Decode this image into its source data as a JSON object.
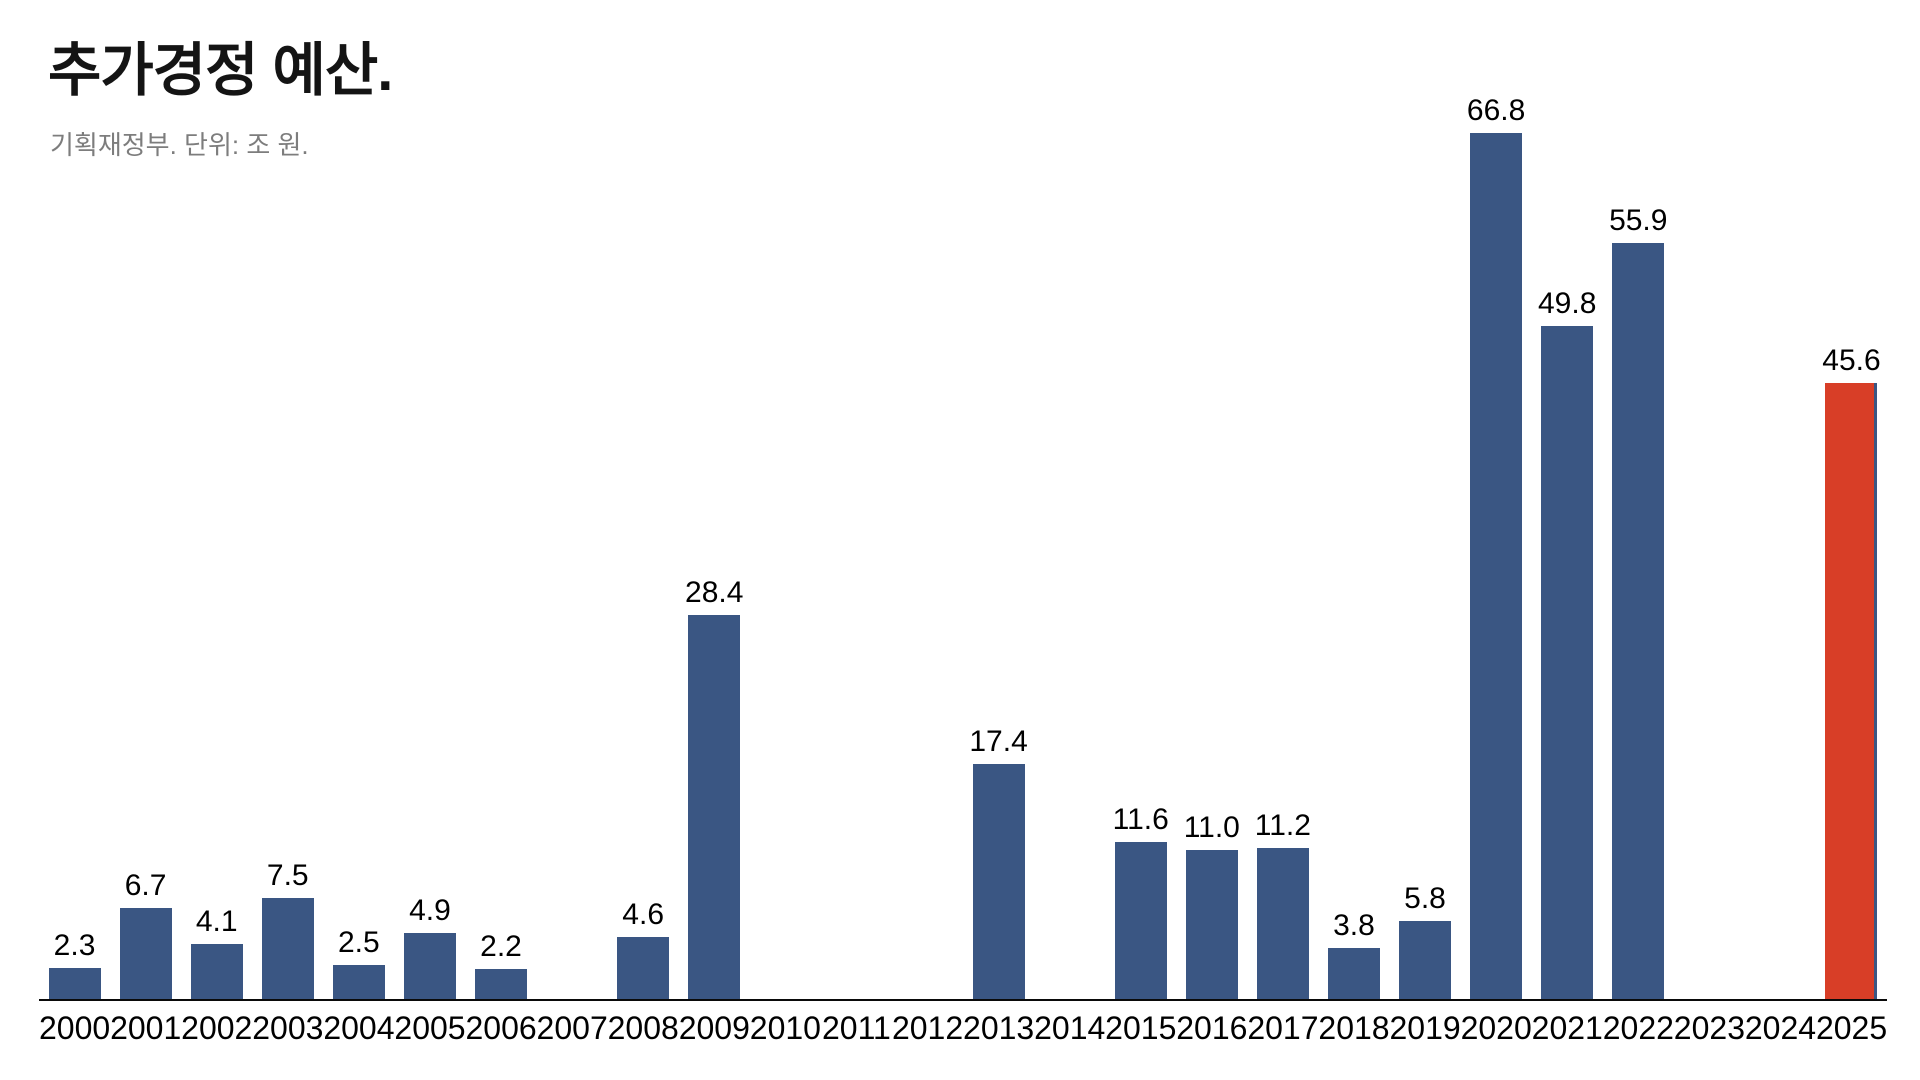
{
  "header": {
    "title": "추가경정 예산.",
    "subtitle": "기획재정부. 단위: 조 원."
  },
  "chart_data": {
    "type": "bar",
    "title": "추가경정 예산.",
    "subtitle": "기획재정부. 단위: 조 원.",
    "categories": [
      "2000",
      "2001",
      "2002",
      "2003",
      "2004",
      "2005",
      "2006",
      "2007",
      "2008",
      "2009",
      "2010",
      "2011",
      "2012",
      "2013",
      "2014",
      "2015",
      "2016",
      "2017",
      "2018",
      "2019",
      "2020",
      "2021",
      "2022",
      "2023",
      "2024",
      "2025"
    ],
    "values": [
      2.3,
      6.7,
      4.1,
      7.5,
      2.5,
      4.9,
      2.2,
      null,
      4.6,
      28.4,
      null,
      null,
      null,
      17.4,
      null,
      11.6,
      11.0,
      11.2,
      3.8,
      5.8,
      66.8,
      49.8,
      55.9,
      null,
      null,
      45.6
    ],
    "highlight_index": 25,
    "value_label_decimals": 1,
    "xlabel": "",
    "ylabel": "",
    "ylim": [
      0,
      66.8
    ],
    "grid": false,
    "legend": false,
    "colors": {
      "bar": "#3A5683",
      "highlight": "#D83E27",
      "axis": "#0A0A0A",
      "title_text": "#141414",
      "subtitle_text": "#7D7D7D",
      "label_text": "#000000"
    }
  }
}
